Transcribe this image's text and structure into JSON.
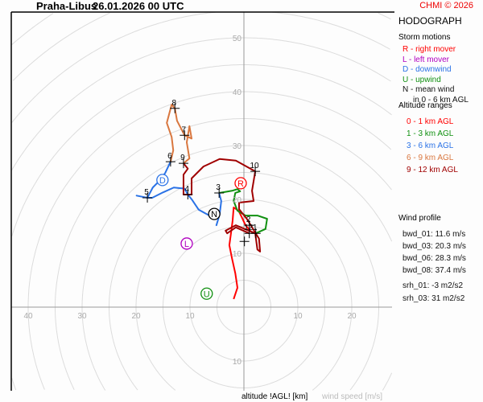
{
  "header": {
    "station": "Praha-Libus",
    "datetime": "26.01.2026 00 UTC",
    "copyright": "CHMI © 2026"
  },
  "legend": {
    "title": "HODOGRAPH",
    "storm_title": "Storm motions",
    "storm": [
      {
        "text": "R - right mover",
        "color": "#ff0000"
      },
      {
        "text": "L - left mover",
        "color": "#b000c0"
      },
      {
        "text": "D - downwind",
        "color": "#2a72e6"
      },
      {
        "text": "U - upwind",
        "color": "#109010"
      },
      {
        "text": "N - mean wind",
        "color": "#111111"
      },
      {
        "text": "in 0 - 6 km AGL",
        "color": "#111111"
      }
    ],
    "alt_title": "Altitude ranges",
    "alt": [
      {
        "text": "0 - 1 km AGL",
        "color": "#ff0000"
      },
      {
        "text": "1 - 3 km AGL",
        "color": "#109010"
      },
      {
        "text": "3 - 6 km AGL",
        "color": "#2a72e6"
      },
      {
        "text": "6 - 9 km AGL",
        "color": "#d9773f"
      },
      {
        "text": "9 - 12 km AGL",
        "color": "#a00000"
      }
    ],
    "wind_title": "Wind profile",
    "wind": [
      "bwd_01: 11.6 m/s",
      "bwd_03: 20.3 m/s",
      "bwd_06: 28.3 m/s",
      "bwd_08: 37.4 m/s"
    ],
    "srh": [
      "srh_01: -3 m2/s2",
      "srh_03: 31 m2/s2"
    ]
  },
  "chart_data": {
    "type": "line",
    "title": "HODOGRAPH",
    "xlabel": "altitude !AGL! [km]",
    "ylabel": "wind speed [m/s]",
    "x_ticks": [
      "40",
      "30",
      "20",
      "10",
      "10",
      "20"
    ],
    "y_ticks": [
      "10",
      "20",
      "30",
      "40",
      "50"
    ],
    "y_ticks_below": [
      "10"
    ],
    "ring_step": 5,
    "grid": true,
    "series": [
      {
        "name": "0 - 1 km AGL",
        "color": "#ff0000",
        "points": [
          [
            -1.9,
            1.5
          ],
          [
            -1.2,
            3.6
          ],
          [
            -1.6,
            6.3
          ],
          [
            -2.2,
            9.0
          ],
          [
            -2.7,
            11.5
          ],
          [
            -2.4,
            13.7
          ],
          [
            -2.1,
            16.0
          ],
          [
            -1.9,
            18.5
          ],
          [
            -1.0,
            17.9
          ],
          [
            -0.4,
            16.7
          ],
          [
            0.3,
            15.2
          ],
          [
            1.3,
            14.0
          ],
          [
            2.2,
            13.7
          ]
        ]
      },
      {
        "name": "1 - 3 km AGL",
        "color": "#109010",
        "points": [
          [
            2.2,
            13.7
          ],
          [
            4.0,
            14.5
          ],
          [
            4.3,
            16.4
          ],
          [
            2.5,
            17.0
          ],
          [
            0.3,
            17.0
          ],
          [
            -1.2,
            17.9
          ],
          [
            -1.9,
            19.7
          ],
          [
            -1.6,
            21.2
          ],
          [
            -0.7,
            21.5
          ],
          [
            -1.2,
            21.9
          ],
          [
            -2.2,
            21.6
          ],
          [
            -4.6,
            21.2
          ]
        ]
      },
      {
        "name": "3 - 6 km AGL",
        "color": "#2a72e6",
        "points": [
          [
            -4.6,
            21.2
          ],
          [
            -4.2,
            19.7
          ],
          [
            -4.5,
            17.2
          ],
          [
            -5.1,
            15.2
          ],
          [
            -4.5,
            17.2
          ],
          [
            -5.8,
            17.1
          ],
          [
            -6.6,
            17.1
          ],
          [
            -8.4,
            18.1
          ],
          [
            -9.6,
            19.9
          ],
          [
            -10.4,
            20.9
          ],
          [
            -11.0,
            22.0
          ],
          [
            -13.0,
            22.2
          ],
          [
            -15.0,
            21.3
          ],
          [
            -17.0,
            20.3
          ],
          [
            -17.9,
            20.3
          ],
          [
            -19.9,
            20.7
          ],
          [
            -17.9,
            20.3
          ],
          [
            -16.9,
            22.2
          ],
          [
            -15.7,
            23.4
          ],
          [
            -14.6,
            24.9
          ],
          [
            -13.6,
            27.0
          ]
        ]
      },
      {
        "name": "6 - 9 km AGL",
        "color": "#d9773f",
        "points": [
          [
            -13.6,
            27.0
          ],
          [
            -13.1,
            29.1
          ],
          [
            -13.4,
            31.6
          ],
          [
            -14.3,
            34.2
          ],
          [
            -13.9,
            35.7
          ],
          [
            -13.4,
            37.6
          ],
          [
            -12.8,
            36.9
          ],
          [
            -12.4,
            34.6
          ],
          [
            -11.0,
            31.9
          ],
          [
            -9.7,
            31.3
          ],
          [
            -10.1,
            33.6
          ],
          [
            -10.6,
            30.6
          ],
          [
            -10.1,
            27.6
          ],
          [
            -11.2,
            26.7
          ]
        ]
      },
      {
        "name": "9 - 12 km AGL",
        "color": "#a00000",
        "points": [
          [
            -11.2,
            26.7
          ],
          [
            -10.4,
            25.7
          ],
          [
            -11.2,
            24.6
          ],
          [
            -11.2,
            20.9
          ],
          [
            -9.7,
            20.9
          ],
          [
            -9.7,
            23.9
          ],
          [
            -7.5,
            26.1
          ],
          [
            -4.5,
            27.5
          ],
          [
            -1.5,
            27.2
          ],
          [
            2.1,
            25.2
          ],
          [
            1.5,
            21.6
          ],
          [
            1.8,
            19.7
          ],
          [
            -0.9,
            19.4
          ],
          [
            -0.9,
            18.2
          ],
          [
            0.6,
            16.3
          ],
          [
            2.8,
            12.7
          ],
          [
            3.0,
            10.3
          ],
          [
            2.5,
            10.7
          ],
          [
            2.1,
            13.7
          ],
          [
            -1.5,
            15.2
          ],
          [
            -3.4,
            14.2
          ],
          [
            -3.1,
            13.7
          ],
          [
            -1.5,
            14.8
          ],
          [
            1.0,
            13.7
          ]
        ]
      }
    ],
    "height_marks": [
      {
        "label": "1",
        "u": 2.2,
        "v": 13.7
      },
      {
        "label": "2",
        "u": 1.0,
        "v": 15.2
      },
      {
        "label": "3",
        "u": -4.6,
        "v": 21.2
      },
      {
        "label": "4",
        "u": -10.4,
        "v": 20.9
      },
      {
        "label": "5",
        "u": -17.9,
        "v": 20.3
      },
      {
        "label": "6",
        "u": -13.6,
        "v": 27.0
      },
      {
        "label": "7",
        "u": -11.0,
        "v": 31.9
      },
      {
        "label": "8",
        "u": -12.8,
        "v": 36.9
      },
      {
        "label": "9",
        "u": -11.2,
        "v": 26.7
      },
      {
        "label": "10",
        "u": 2.1,
        "v": 25.2
      },
      {
        "label": "",
        "u": 0.1,
        "v": 12.2
      },
      {
        "label": "12",
        "u": 1.0,
        "v": 13.7
      }
    ],
    "storm_motions": [
      {
        "label": "R",
        "u": -0.6,
        "v": 23.0,
        "color": "#ff0000"
      },
      {
        "label": "D",
        "u": -15.1,
        "v": 23.6,
        "color": "#2a72e6"
      },
      {
        "label": "N",
        "u": -5.5,
        "v": 17.3,
        "color": "#000000"
      },
      {
        "label": "L",
        "u": -10.6,
        "v": 11.8,
        "color": "#b000c0"
      },
      {
        "label": "U",
        "u": -6.9,
        "v": 2.5,
        "color": "#109010"
      }
    ]
  }
}
